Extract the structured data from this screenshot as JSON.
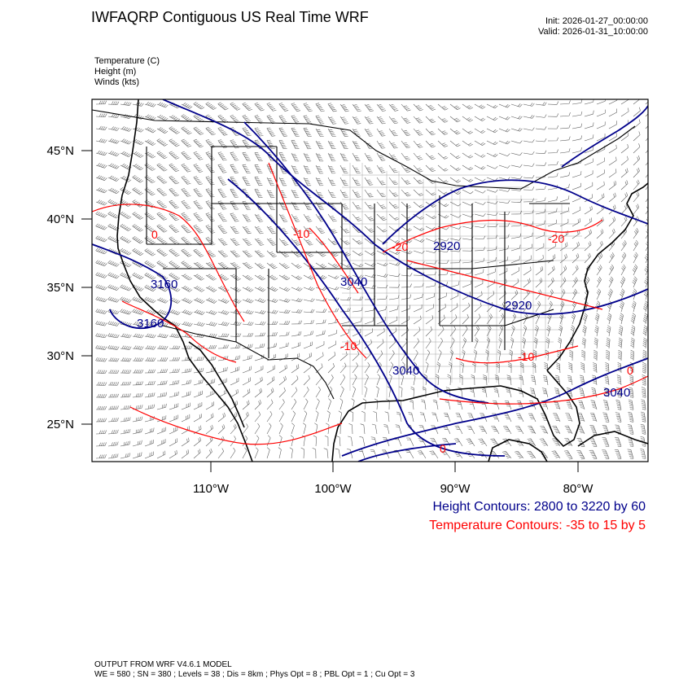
{
  "header": {
    "title": "IWFAQRP Contiguous US Real Time WRF",
    "init": "Init: 2026-01-27_00:00:00",
    "valid": "Valid: 2026-01-31_10:00:00"
  },
  "variables": [
    "Temperature   (C)",
    "Height   (m)",
    "Winds   (kts)"
  ],
  "axes": {
    "lat_labels": [
      "45°N",
      "40°N",
      "35°N",
      "30°N",
      "25°N"
    ],
    "lon_labels": [
      "110°W",
      "100°W",
      "90°W",
      "80°W"
    ]
  },
  "contour_labels": {
    "height": [
      "2920",
      "3040",
      "3160",
      "3160",
      "2920",
      "3040",
      "3040"
    ],
    "temperature": [
      "-10",
      "-20",
      "-20",
      "-10",
      "-10",
      "0",
      "0",
      "0"
    ]
  },
  "legend": {
    "height": "Height Contours: 2800 to 3220 by 60",
    "temperature": "Temperature Contours: -35 to 15 by 5"
  },
  "footer": {
    "line1": "OUTPUT FROM WRF V4.6.1 MODEL",
    "line2": "WE = 580 ; SN = 380 ; Levels = 38 ; Dis = 8km ; Phys Opt = 8 ; PBL Opt = 1 ; Cu Opt = 3"
  },
  "colors": {
    "height": "#00008b",
    "temperature": "#ff0000",
    "border": "#000000"
  }
}
